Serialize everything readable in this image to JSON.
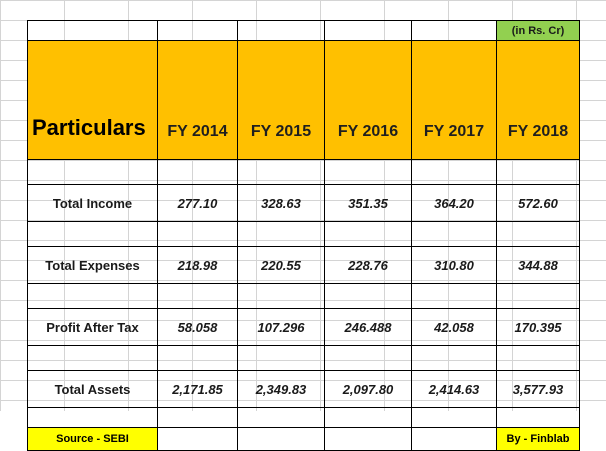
{
  "unit_note": "(in Rs. Cr)",
  "header": {
    "particulars": "Particulars",
    "years": [
      "FY 2014",
      "FY 2015",
      "FY 2016",
      "FY 2017",
      "FY 2018"
    ]
  },
  "rows": [
    {
      "label": "Total Income",
      "values": [
        "277.10",
        "328.63",
        "351.35",
        "364.20",
        "572.60"
      ]
    },
    {
      "label": "Total Expenses",
      "values": [
        "218.98",
        "220.55",
        "228.76",
        "310.80",
        "344.88"
      ]
    },
    {
      "label": "Profit After Tax",
      "values": [
        "58.058",
        "107.296",
        "246.488",
        "42.058",
        "170.395"
      ]
    },
    {
      "label": "Total Assets",
      "values": [
        "2,171.85",
        "2,349.83",
        "2,097.80",
        "2,414.63",
        "3,577.93"
      ]
    }
  ],
  "footer": {
    "source": "Source - SEBI",
    "by": "By - Finblab"
  },
  "colors": {
    "header_fill": "#ffc000",
    "unit_fill": "#92d050",
    "footer_fill": "#ffff00"
  }
}
